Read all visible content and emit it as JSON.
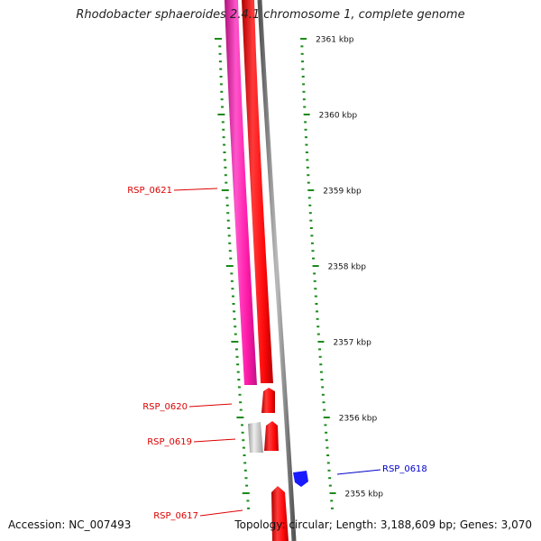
{
  "title": "Rhodobacter sphaeroides 2.4.1 chromosome 1, complete genome",
  "footer": {
    "accession": "Accession: NC_007493",
    "summary": "Topology: circular; Length: 3,188,609 bp; Genes: 3,070"
  },
  "colors": {
    "tick": "#1a8a1a",
    "gene_red": "#ff1a1a",
    "gene_magenta": "#ff2bb5",
    "gene_gray": "#c8c8c8",
    "gene_blue": "#1a1aff",
    "label_red": "#dd0000",
    "label_blue": "#0000cc",
    "backbone": "#888888"
  },
  "ruler": {
    "unit": "kbp",
    "labels": [
      "2361 kbp",
      "2360 kbp",
      "2359 kbp",
      "2358 kbp",
      "2357 kbp",
      "2356 kbp",
      "2355 kbp"
    ]
  },
  "genes": [
    {
      "label": "RSP_0621",
      "strand": "minus",
      "color": "red"
    },
    {
      "label": "RSP_0620",
      "strand": "minus",
      "color": "red"
    },
    {
      "label": "RSP_0619",
      "strand": "minus",
      "color": "red"
    },
    {
      "label": "RSP_0618",
      "strand": "plus",
      "color": "blue"
    },
    {
      "label": "RSP_0617",
      "strand": "minus",
      "color": "red"
    }
  ]
}
